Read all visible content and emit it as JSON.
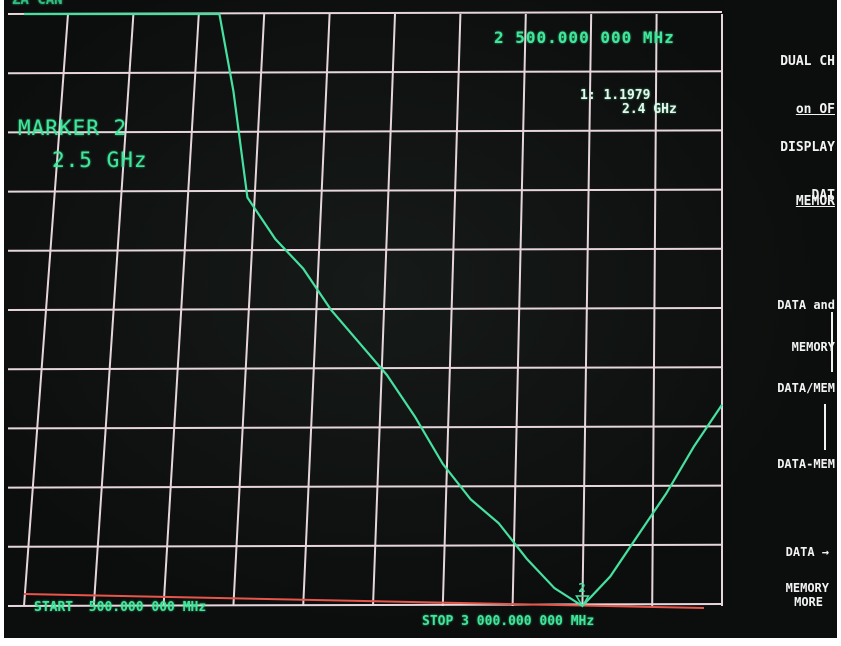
{
  "header": {
    "top_left": "ZA CAN",
    "top_right_fragment": "1: 1.1979"
  },
  "marker": {
    "freq_readout": "2 500.000 000 MHz",
    "label": "MARKER 2",
    "value": "2.5 GHz",
    "ref_line1": "1: 1.1979",
    "ref_line2": "2.4 GHz",
    "marker_symbol": "2"
  },
  "footer": {
    "start": "START  500.000 000 MHz",
    "stop": "STOP 3 000.000 000 MHz"
  },
  "softkeys": {
    "dual_chan": [
      "DUAL CH",
      "on OF"
    ],
    "display": [
      "DISPLAY",
      "DAT"
    ],
    "memory": "MEMOR",
    "data_and_memory": [
      "DATA and",
      "MEMORY"
    ],
    "data_div_mem": "DATA/MEM",
    "data_minus_mem": "DATA-MEM",
    "data_to_memory": [
      "DATA →",
      "MEMORY"
    ],
    "more": "MORE"
  },
  "colors": {
    "trace": "#46e0a0",
    "text": "#3ee79a",
    "grid": "#e6d6dc",
    "baseline": "#e8554a",
    "softkey_text": "#f2f2f2"
  },
  "chart_data": {
    "type": "line",
    "x_range_MHz": [
      500,
      3000
    ],
    "grid_divisions": {
      "x": 10,
      "y": 10
    },
    "grid": true,
    "series": [
      {
        "x": [
          500,
          1200,
          1250,
          1300,
          1400,
          1500,
          1600,
          1800,
          1900,
          2000,
          2100,
          2200,
          2300,
          2400,
          2500,
          2600,
          2700,
          2800,
          2900,
          3000
        ],
        "y": [
          10,
          10,
          8.7,
          6.9,
          6.2,
          5.7,
          5.0,
          3.9,
          3.2,
          2.4,
          1.8,
          1.4,
          0.8,
          0.3,
          0.0,
          0.5,
          1.2,
          1.9,
          2.7,
          3.4
        ]
      }
    ],
    "markers": [
      {
        "label": "2",
        "x_MHz": 2500
      }
    ]
  }
}
